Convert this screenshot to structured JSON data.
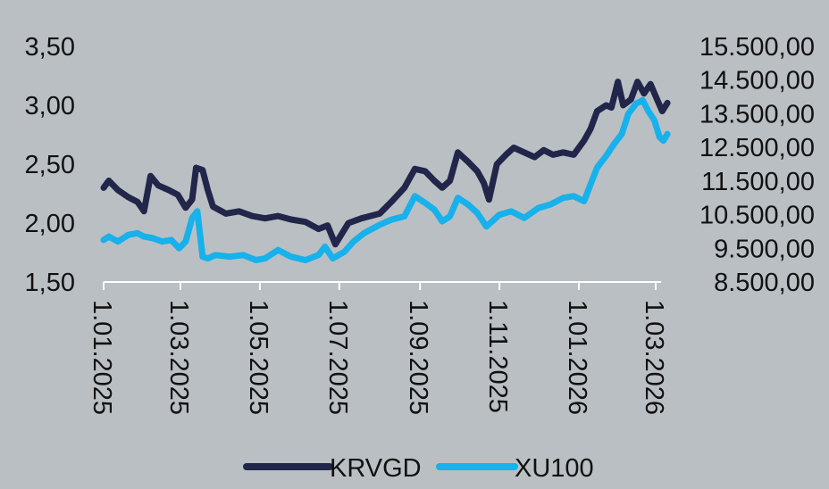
{
  "chart_data": {
    "type": "line",
    "title": "",
    "xlabel": "",
    "ylabel_left": "",
    "ylabel_right": "",
    "x_tick_labels": [
      "1.01.2025",
      "1.03.2025",
      "1.05.2025",
      "1.07.2025",
      "1.09.2025",
      "1.11.2025",
      "1.01.2026",
      "1.03.2026"
    ],
    "y_left_ticks": [
      "1,50",
      "2,00",
      "2,50",
      "3,00",
      "3,50"
    ],
    "y_left_range": [
      1.5,
      3.5
    ],
    "y_right_ticks": [
      "8.500,00",
      "9.500,00",
      "10.500,00",
      "11.500,00",
      "12.500,00",
      "13.500,00",
      "14.500,00",
      "15.500,00"
    ],
    "y_right_range": [
      8500,
      15500
    ],
    "grid": false,
    "legend_position": "bottom",
    "series": [
      {
        "name": "KRVGD",
        "axis": "left",
        "color": "#21264a",
        "points": [
          [
            "2025-01-01",
            2.3
          ],
          [
            "2025-01-05",
            2.36
          ],
          [
            "2025-01-12",
            2.28
          ],
          [
            "2025-01-20",
            2.22
          ],
          [
            "2025-01-27",
            2.18
          ],
          [
            "2025-02-01",
            2.1
          ],
          [
            "2025-02-06",
            2.4
          ],
          [
            "2025-02-12",
            2.32
          ],
          [
            "2025-02-20",
            2.28
          ],
          [
            "2025-02-27",
            2.24
          ],
          [
            "2025-03-05",
            2.13
          ],
          [
            "2025-03-10",
            2.2
          ],
          [
            "2025-03-13",
            2.47
          ],
          [
            "2025-03-18",
            2.45
          ],
          [
            "2025-03-22",
            2.28
          ],
          [
            "2025-03-26",
            2.14
          ],
          [
            "2025-04-05",
            2.08
          ],
          [
            "2025-04-15",
            2.1
          ],
          [
            "2025-04-25",
            2.06
          ],
          [
            "2025-05-05",
            2.04
          ],
          [
            "2025-05-15",
            2.06
          ],
          [
            "2025-05-25",
            2.03
          ],
          [
            "2025-06-05",
            2.01
          ],
          [
            "2025-06-15",
            1.95
          ],
          [
            "2025-06-22",
            1.98
          ],
          [
            "2025-06-28",
            1.82
          ],
          [
            "2025-07-08",
            2.0
          ],
          [
            "2025-07-18",
            2.04
          ],
          [
            "2025-08-01",
            2.08
          ],
          [
            "2025-08-10",
            2.18
          ],
          [
            "2025-08-20",
            2.3
          ],
          [
            "2025-08-28",
            2.46
          ],
          [
            "2025-09-05",
            2.44
          ],
          [
            "2025-09-12",
            2.36
          ],
          [
            "2025-09-18",
            2.3
          ],
          [
            "2025-09-24",
            2.36
          ],
          [
            "2025-09-30",
            2.6
          ],
          [
            "2025-10-08",
            2.52
          ],
          [
            "2025-10-15",
            2.44
          ],
          [
            "2025-10-20",
            2.34
          ],
          [
            "2025-10-24",
            2.2
          ],
          [
            "2025-10-30",
            2.5
          ],
          [
            "2025-11-06",
            2.58
          ],
          [
            "2025-11-12",
            2.64
          ],
          [
            "2025-11-20",
            2.6
          ],
          [
            "2025-11-28",
            2.56
          ],
          [
            "2025-12-05",
            2.62
          ],
          [
            "2025-12-12",
            2.58
          ],
          [
            "2025-12-20",
            2.6
          ],
          [
            "2025-12-28",
            2.58
          ],
          [
            "2026-01-05",
            2.7
          ],
          [
            "2026-01-10",
            2.8
          ],
          [
            "2026-01-15",
            2.95
          ],
          [
            "2026-01-22",
            3.0
          ],
          [
            "2026-01-26",
            2.98
          ],
          [
            "2026-01-31",
            3.2
          ],
          [
            "2026-02-04",
            3.0
          ],
          [
            "2026-02-10",
            3.05
          ],
          [
            "2026-02-15",
            3.2
          ],
          [
            "2026-02-20",
            3.1
          ],
          [
            "2026-02-25",
            3.18
          ],
          [
            "2026-03-02",
            3.05
          ],
          [
            "2026-03-06",
            2.95
          ],
          [
            "2026-03-10",
            3.02
          ]
        ]
      },
      {
        "name": "XU100",
        "axis": "right",
        "color": "#17b1eb",
        "points": [
          [
            "2025-01-01",
            9750
          ],
          [
            "2025-01-05",
            9850
          ],
          [
            "2025-01-12",
            9700
          ],
          [
            "2025-01-20",
            9900
          ],
          [
            "2025-01-27",
            9950
          ],
          [
            "2025-02-01",
            9850
          ],
          [
            "2025-02-08",
            9800
          ],
          [
            "2025-02-15",
            9700
          ],
          [
            "2025-02-22",
            9750
          ],
          [
            "2025-02-28",
            9500
          ],
          [
            "2025-03-05",
            9700
          ],
          [
            "2025-03-10",
            10400
          ],
          [
            "2025-03-14",
            10600
          ],
          [
            "2025-03-18",
            9250
          ],
          [
            "2025-03-22",
            9200
          ],
          [
            "2025-03-28",
            9300
          ],
          [
            "2025-04-08",
            9250
          ],
          [
            "2025-04-18",
            9300
          ],
          [
            "2025-04-28",
            9150
          ],
          [
            "2025-05-05",
            9200
          ],
          [
            "2025-05-15",
            9450
          ],
          [
            "2025-05-25",
            9250
          ],
          [
            "2025-06-05",
            9150
          ],
          [
            "2025-06-15",
            9300
          ],
          [
            "2025-06-20",
            9550
          ],
          [
            "2025-06-26",
            9200
          ],
          [
            "2025-07-05",
            9400
          ],
          [
            "2025-07-12",
            9700
          ],
          [
            "2025-07-20",
            9950
          ],
          [
            "2025-08-01",
            10200
          ],
          [
            "2025-08-10",
            10350
          ],
          [
            "2025-08-20",
            10450
          ],
          [
            "2025-08-28",
            11050
          ],
          [
            "2025-09-05",
            10850
          ],
          [
            "2025-09-12",
            10650
          ],
          [
            "2025-09-18",
            10300
          ],
          [
            "2025-09-24",
            10450
          ],
          [
            "2025-09-30",
            11000
          ],
          [
            "2025-10-08",
            10800
          ],
          [
            "2025-10-15",
            10550
          ],
          [
            "2025-10-22",
            10150
          ],
          [
            "2025-11-01",
            10500
          ],
          [
            "2025-11-10",
            10600
          ],
          [
            "2025-11-20",
            10400
          ],
          [
            "2025-12-01",
            10700
          ],
          [
            "2025-12-10",
            10800
          ],
          [
            "2025-12-20",
            11000
          ],
          [
            "2025-12-28",
            11050
          ],
          [
            "2026-01-05",
            10900
          ],
          [
            "2026-01-10",
            11400
          ],
          [
            "2026-01-15",
            11900
          ],
          [
            "2026-01-22",
            12250
          ],
          [
            "2026-01-28",
            12600
          ],
          [
            "2026-02-03",
            12900
          ],
          [
            "2026-02-08",
            13500
          ],
          [
            "2026-02-14",
            13800
          ],
          [
            "2026-02-19",
            13900
          ],
          [
            "2026-02-23",
            13600
          ],
          [
            "2026-02-28",
            13300
          ],
          [
            "2026-03-04",
            12800
          ],
          [
            "2026-03-07",
            12700
          ],
          [
            "2026-03-10",
            12900
          ]
        ]
      }
    ]
  }
}
